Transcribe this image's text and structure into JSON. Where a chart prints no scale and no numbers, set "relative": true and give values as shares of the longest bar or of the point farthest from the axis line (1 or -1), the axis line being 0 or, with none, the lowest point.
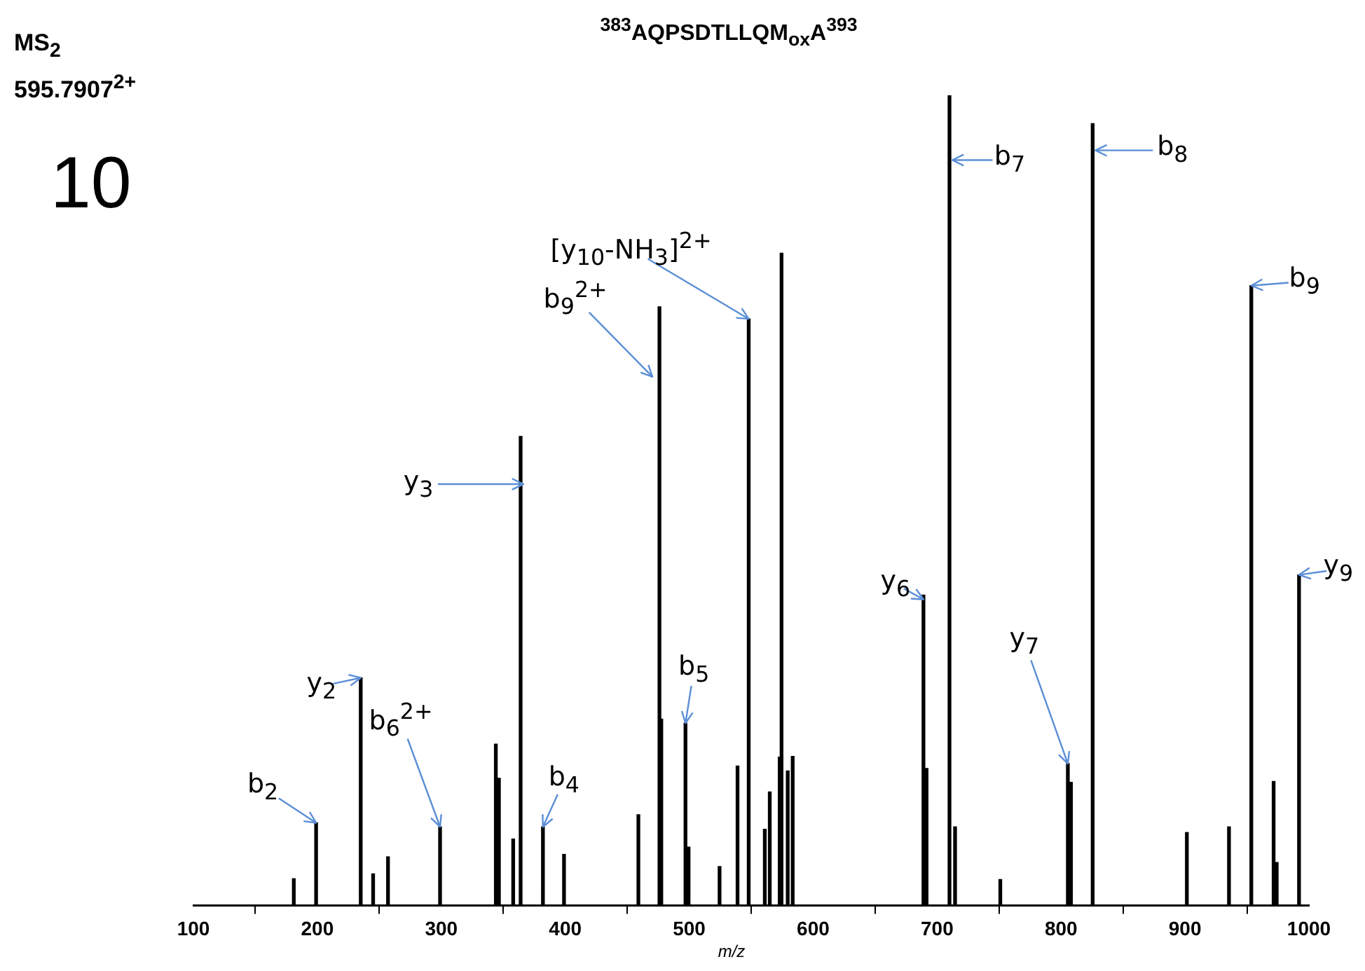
{
  "chart_data": {
    "type": "bar",
    "title": "$^{383}$AQPSDTLLQM$_{ox}$A$^{393}$",
    "xlabel": "m/z",
    "relative": true,
    "color": "#000000",
    "xlim": [
      100,
      1000
    ],
    "xticks": [
      100,
      200,
      300,
      400,
      500,
      600,
      700,
      800,
      900,
      1000
    ],
    "x": [
      181,
      199,
      235,
      245,
      257,
      299,
      344,
      346.5,
      358,
      364,
      382,
      399,
      459,
      476,
      477.5,
      497,
      499.5,
      524.5,
      539,
      548,
      561,
      565,
      573,
      574.5,
      579.5,
      583.5,
      689,
      691.5,
      710,
      714.5,
      751,
      805.5,
      808,
      825.5,
      901.5,
      935.5,
      953.5,
      971.5,
      974,
      992
    ],
    "values": [
      0.033,
      0.102,
      0.281,
      0.039,
      0.06,
      0.097,
      0.199,
      0.157,
      0.082,
      0.579,
      0.097,
      0.063,
      0.112,
      0.739,
      0.23,
      0.225,
      0.072,
      0.048,
      0.172,
      0.724,
      0.094,
      0.14,
      0.183,
      0.805,
      0.166,
      0.184,
      0.383,
      0.169,
      1,
      0.097,
      0.032,
      0.175,
      0.152,
      0.965,
      0.09,
      0.097,
      0.765,
      0.153,
      0.053,
      0.408
    ],
    "annotations": [
      "MS$_{2}$",
      "595.7907$^{2+}$",
      "10",
      {
        "text": "b$_{2}$",
        "x": 199,
        "y": 0.102
      },
      {
        "text": "y$_{2}$",
        "x": 235,
        "y": 0.281
      },
      {
        "text": "b$_{6}$$^{2+}$",
        "x": 299,
        "y": 0.097
      },
      {
        "text": "y$_{3}$",
        "x": 364,
        "y": 0.52
      },
      {
        "text": "b$_{4}$",
        "x": 382,
        "y": 0.097
      },
      {
        "text": "b$_{9}$$^{2+}$",
        "x": 476,
        "y": 0.739
      },
      {
        "text": "b$_{5}$",
        "x": 497,
        "y": 0.225
      },
      {
        "text": "[y$_{10}$-NH$_{3}$]$^{2+}$",
        "x": 548,
        "y": 0.724
      },
      {
        "text": "y$_{6}$",
        "x": 689,
        "y": 0.383
      },
      {
        "text": "b$_{7}$",
        "x": 710,
        "y": 0.92
      },
      {
        "text": "y$_{7}$",
        "x": 805.5,
        "y": 0.175
      },
      {
        "text": "b$_{8}$",
        "x": 825.5,
        "y": 0.932
      },
      {
        "text": "b$_{9}$",
        "x": 953.5,
        "y": 0.765
      },
      {
        "text": "y$_{9}$",
        "x": 992,
        "y": 0.408
      }
    ]
  }
}
